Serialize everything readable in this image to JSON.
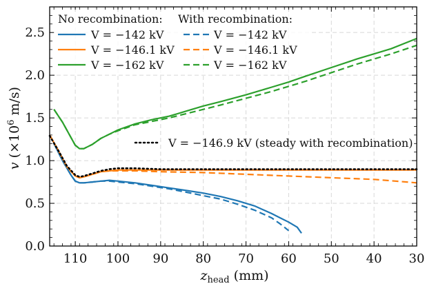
{
  "chart_data": {
    "type": "line",
    "xlabel": "z_head (mm)",
    "ylabel": "v (×10^6 m/s)",
    "xlim": [
      116,
      30
    ],
    "ylim": [
      0,
      2.8
    ],
    "x_ticks": [
      110,
      100,
      90,
      80,
      70,
      60,
      50,
      40,
      30
    ],
    "y_ticks": [
      0.0,
      0.5,
      1.0,
      1.5,
      2.0,
      2.5
    ],
    "x_tick_labels": [
      "110",
      "100",
      "90",
      "80",
      "70",
      "60",
      "50",
      "40",
      "30"
    ],
    "y_tick_labels": [
      "0.0",
      "0.5",
      "1.0",
      "1.5",
      "2.0",
      "2.5"
    ],
    "grid": true,
    "legend_placement": "top-left",
    "legend": {
      "group_no_recombination": "No recombination:",
      "group_with_recombination": "With recombination:"
    },
    "colors": {
      "blue": "#1f77b4",
      "orange": "#ff7f0e",
      "green": "#2ca02c",
      "black": "#000000"
    },
    "series": [
      {
        "name": "V = −142 kV",
        "group": "no_recombination",
        "color": "#1f77b4",
        "style": "solid",
        "x": [
          115,
          113,
          111,
          110,
          109,
          108,
          106,
          104,
          102,
          100,
          96,
          92,
          88,
          84,
          80,
          76,
          72,
          68,
          64,
          62,
          60,
          58,
          57
        ],
        "y": [
          1.2,
          1.0,
          0.83,
          0.76,
          0.74,
          0.74,
          0.75,
          0.76,
          0.77,
          0.76,
          0.74,
          0.71,
          0.68,
          0.65,
          0.62,
          0.58,
          0.53,
          0.47,
          0.38,
          0.33,
          0.28,
          0.22,
          0.15
        ]
      },
      {
        "name": "V = −146.1 kV",
        "group": "no_recombination",
        "color": "#ff7f0e",
        "style": "solid",
        "x": [
          116,
          114,
          112,
          110,
          109,
          108,
          106,
          104,
          102,
          100,
          96,
          90,
          80,
          70,
          60,
          50,
          40,
          30
        ],
        "y": [
          1.3,
          1.12,
          0.93,
          0.82,
          0.8,
          0.81,
          0.84,
          0.87,
          0.88,
          0.89,
          0.89,
          0.89,
          0.89,
          0.89,
          0.89,
          0.89,
          0.89,
          0.89
        ]
      },
      {
        "name": "V = −162 kV",
        "group": "no_recombination",
        "color": "#2ca02c",
        "style": "solid",
        "x": [
          115,
          113,
          111,
          110,
          109,
          108,
          106,
          104,
          102,
          100,
          96,
          92,
          88,
          84,
          80,
          76,
          70,
          64,
          60,
          56,
          50,
          44,
          40,
          36,
          30
        ],
        "y": [
          1.6,
          1.45,
          1.27,
          1.18,
          1.14,
          1.14,
          1.19,
          1.26,
          1.31,
          1.36,
          1.43,
          1.48,
          1.52,
          1.58,
          1.64,
          1.69,
          1.77,
          1.86,
          1.92,
          1.99,
          2.09,
          2.19,
          2.25,
          2.31,
          2.43
        ]
      },
      {
        "name": "V = −142 kV",
        "group": "with_recombination",
        "color": "#1f77b4",
        "style": "dashed",
        "x": [
          115,
          113,
          111,
          110,
          109,
          108,
          106,
          104,
          102,
          100,
          96,
          92,
          88,
          84,
          80,
          76,
          72,
          68,
          64,
          62,
          60
        ],
        "y": [
          1.2,
          1.0,
          0.83,
          0.76,
          0.74,
          0.74,
          0.75,
          0.76,
          0.76,
          0.75,
          0.73,
          0.7,
          0.67,
          0.63,
          0.59,
          0.55,
          0.49,
          0.42,
          0.33,
          0.26,
          0.18
        ]
      },
      {
        "name": "V = −146.1 kV",
        "group": "with_recombination",
        "color": "#ff7f0e",
        "style": "dashed",
        "x": [
          116,
          114,
          112,
          110,
          109,
          108,
          106,
          104,
          102,
          100,
          96,
          90,
          80,
          70,
          60,
          50,
          40,
          30
        ],
        "y": [
          1.3,
          1.12,
          0.93,
          0.82,
          0.8,
          0.81,
          0.84,
          0.87,
          0.88,
          0.88,
          0.88,
          0.87,
          0.86,
          0.84,
          0.82,
          0.8,
          0.78,
          0.74
        ]
      },
      {
        "name": "V = −162 kV",
        "group": "with_recombination",
        "color": "#2ca02c",
        "style": "dashed",
        "x": [
          115,
          113,
          111,
          110,
          109,
          108,
          106,
          104,
          102,
          100,
          96,
          92,
          88,
          84,
          80,
          76,
          70,
          64,
          60,
          56,
          50,
          44,
          40,
          36,
          30
        ],
        "y": [
          1.6,
          1.45,
          1.27,
          1.18,
          1.14,
          1.14,
          1.19,
          1.26,
          1.31,
          1.35,
          1.42,
          1.46,
          1.5,
          1.55,
          1.6,
          1.65,
          1.73,
          1.81,
          1.87,
          1.93,
          2.03,
          2.13,
          2.19,
          2.25,
          2.35
        ]
      },
      {
        "name": "V = −146.9 kV (steady with recombination)",
        "group": "steady",
        "color": "#000000",
        "style": "dotted",
        "x": [
          116,
          114,
          112,
          110,
          109,
          108,
          106,
          104,
          102,
          100,
          96,
          90,
          80,
          70,
          60,
          50,
          40,
          30
        ],
        "y": [
          1.29,
          1.12,
          0.94,
          0.83,
          0.81,
          0.82,
          0.85,
          0.88,
          0.9,
          0.91,
          0.91,
          0.9,
          0.9,
          0.9,
          0.9,
          0.9,
          0.9,
          0.9
        ]
      }
    ]
  }
}
